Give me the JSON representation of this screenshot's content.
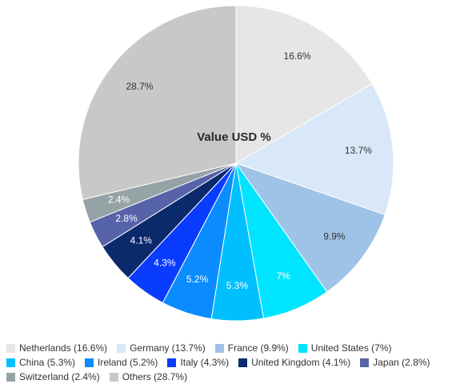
{
  "chart_data": {
    "type": "pie",
    "title": "Value USD %",
    "start_angle_deg": 0,
    "direction": "clockwise",
    "slices": [
      {
        "label": "Netherlands",
        "value": 16.6,
        "value_label": "16.6%",
        "legend_label": "Netherlands (16.6%)",
        "color": "#e6e6e6",
        "label_color": "#333333"
      },
      {
        "label": "Germany",
        "value": 13.7,
        "value_label": "13.7%",
        "legend_label": "Germany (13.7%)",
        "color": "#d9e8f8",
        "label_color": "#333333"
      },
      {
        "label": "France",
        "value": 9.9,
        "value_label": "9.9%",
        "legend_label": "France (9.9%)",
        "color": "#9fc3e7",
        "label_color": "#333333"
      },
      {
        "label": "United States",
        "value": 7,
        "value_label": "7%",
        "legend_label": "United States (7%)",
        "color": "#00e5ff",
        "label_color": "#ffffff"
      },
      {
        "label": "China",
        "value": 5.3,
        "value_label": "5.3%",
        "legend_label": "China (5.3%)",
        "color": "#00bfff",
        "label_color": "#ffffff"
      },
      {
        "label": "Ireland",
        "value": 5.2,
        "value_label": "5.2%",
        "legend_label": "Ireland (5.2%)",
        "color": "#0a8cff",
        "label_color": "#ffffff"
      },
      {
        "label": "Italy",
        "value": 4.3,
        "value_label": "4.3%",
        "legend_label": "Italy (4.3%)",
        "color": "#0a3cff",
        "label_color": "#ffffff"
      },
      {
        "label": "United Kingdom",
        "value": 4.1,
        "value_label": "4.1%",
        "legend_label": "United Kingdom (4.1%)",
        "color": "#0a2a6b",
        "label_color": "#ffffff"
      },
      {
        "label": "Japan",
        "value": 2.8,
        "value_label": "2.8%",
        "legend_label": "Japan (2.8%)",
        "color": "#5763a8",
        "label_color": "#ffffff"
      },
      {
        "label": "Switzerland",
        "value": 2.4,
        "value_label": "2.4%",
        "legend_label": "Switzerland (2.4%)",
        "color": "#96a3a6",
        "label_color": "#ffffff"
      },
      {
        "label": "Others",
        "value": 28.7,
        "value_label": "28.7%",
        "legend_label": "Others (28.7%)",
        "color": "#c8c8c8",
        "label_color": "#333333"
      }
    ],
    "legend": {
      "placement": "bottom",
      "rows": [
        [
          "Netherlands",
          "Germany",
          "France",
          "United States"
        ],
        [
          "China",
          "Ireland",
          "Italy",
          "United Kingdom",
          "Japan"
        ],
        [
          "Switzerland",
          "Others"
        ]
      ]
    }
  }
}
